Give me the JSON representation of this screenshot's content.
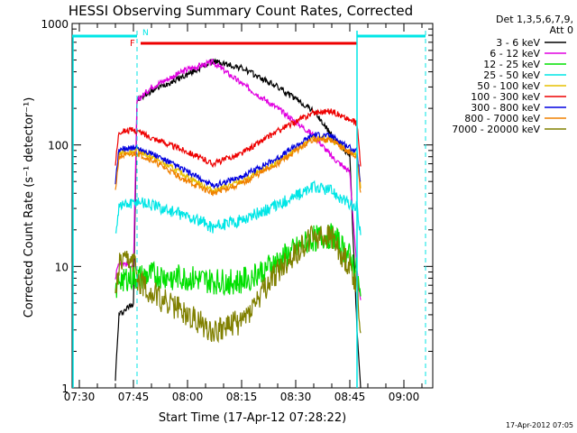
{
  "chart_data": {
    "type": "line",
    "title": "HESSI Observing Summary Count Rates, Corrected",
    "xlabel": "Start Time (17-Apr-12 07:28:22)",
    "ylabel": "Corrected Count Rate (s⁻¹ detector⁻¹)",
    "y_scale": "log",
    "xlim": [
      "07:28",
      "09:08"
    ],
    "ylim": [
      1,
      1000
    ],
    "x_ticks": [
      "07:30",
      "07:45",
      "08:00",
      "08:15",
      "08:30",
      "08:45",
      "09:00"
    ],
    "y_ticks": [
      "1",
      "10",
      "100",
      "1000"
    ],
    "legend_header": [
      "Det 1,3,5,6,7,9,",
      "Att 0"
    ],
    "legend_position": "right",
    "timestamp": "17-Apr-2012 07:05",
    "flag_labels": {
      "flare": "F",
      "night": "N"
    },
    "x_knots": [
      "07:38",
      "07:40",
      "07:41",
      "07:45",
      "07:46",
      "07:50",
      "08:00",
      "08:07",
      "08:15",
      "08:25",
      "08:35",
      "08:40",
      "08:45",
      "08:47",
      "08:48"
    ],
    "series": [
      {
        "name": "3 - 6 keV",
        "color": "#000000",
        "values": [
          null,
          1.2,
          4,
          5,
          230,
          280,
          380,
          490,
          430,
          300,
          190,
          120,
          80,
          3,
          1
        ]
      },
      {
        "name": "6 - 12 keV",
        "color": "#e000e0",
        "values": [
          null,
          8,
          11,
          10,
          230,
          300,
          420,
          480,
          320,
          200,
          120,
          80,
          60,
          9,
          5
        ]
      },
      {
        "name": "12 - 25 keV",
        "color": "#00e000",
        "values": [
          null,
          6,
          8,
          8,
          8,
          8.5,
          8,
          7.5,
          7.5,
          11,
          17,
          18,
          12,
          9,
          5
        ]
      },
      {
        "name": "25 - 50 keV",
        "color": "#00e6e6",
        "values": [
          null,
          18,
          32,
          33,
          35,
          32,
          26,
          21,
          24,
          32,
          45,
          42,
          32,
          30,
          18
        ]
      },
      {
        "name": "50 - 100 keV",
        "color": "#e6c000",
        "values": [
          null,
          45,
          85,
          88,
          90,
          80,
          55,
          42,
          50,
          72,
          115,
          110,
          88,
          80,
          45
        ]
      },
      {
        "name": "100 - 300 keV",
        "color": "#ee0000",
        "values": [
          null,
          70,
          130,
          132,
          130,
          115,
          88,
          70,
          85,
          130,
          185,
          190,
          160,
          150,
          70
        ]
      },
      {
        "name": "300 - 800 keV",
        "color": "#0000e0",
        "values": [
          null,
          48,
          92,
          95,
          95,
          85,
          60,
          46,
          55,
          78,
          122,
          118,
          95,
          88,
          48
        ]
      },
      {
        "name": "800 - 7000 keV",
        "color": "#f08000",
        "values": [
          null,
          42,
          80,
          84,
          85,
          75,
          50,
          40,
          48,
          70,
          112,
          108,
          86,
          78,
          40
        ]
      },
      {
        "name": "7000 - 20000 keV",
        "color": "#808000",
        "values": [
          null,
          5,
          10,
          11,
          8,
          6,
          4,
          3,
          3.5,
          9,
          18,
          17,
          10,
          7,
          3
        ]
      }
    ]
  }
}
